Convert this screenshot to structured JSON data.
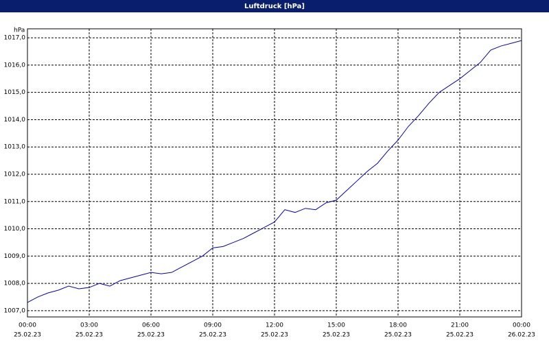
{
  "chart_data": {
    "type": "line",
    "title": "Luftdruck [hPa]",
    "y_unit": "hPa",
    "x": [
      0,
      0.5,
      1,
      1.5,
      2,
      2.5,
      3,
      3.5,
      4,
      4.5,
      5,
      5.5,
      6,
      6.5,
      7,
      7.5,
      8,
      8.5,
      9,
      9.5,
      10,
      10.5,
      11,
      11.5,
      12,
      12.5,
      13,
      13.5,
      14,
      14.5,
      15,
      15.5,
      16,
      16.5,
      17,
      17.5,
      18,
      18.5,
      19,
      19.5,
      20,
      20.5,
      21,
      21.5,
      22,
      22.5,
      23,
      23.5,
      24
    ],
    "series": [
      {
        "color": "#0000cc",
        "values": [
          1007.3,
          1007.5,
          1007.65,
          1007.75,
          1007.9,
          1007.8,
          1007.85,
          1008.0,
          1007.9,
          1008.1,
          1008.2,
          1008.3,
          1008.4,
          1008.35,
          1008.4,
          1008.6,
          1008.8,
          1009.0,
          1009.3,
          1009.35,
          1009.5,
          1009.65,
          1009.85,
          1010.05,
          1010.25,
          1010.7,
          1010.6,
          1010.75,
          1010.7,
          1010.95,
          1011.05,
          1011.4,
          1011.75,
          1012.1,
          1012.4,
          1012.85,
          1013.25,
          1013.75,
          1014.15,
          1014.6,
          1015.0,
          1015.25,
          1015.5,
          1015.8,
          1016.1,
          1016.55,
          1016.7,
          1016.8,
          1016.9
        ]
      }
    ],
    "xlim": [
      0,
      24
    ],
    "xticks": [
      {
        "value": 0,
        "label": "00:00",
        "date": "25.02.23"
      },
      {
        "value": 3,
        "label": "03:00",
        "date": "25.02.23"
      },
      {
        "value": 6,
        "label": "06:00",
        "date": "25.02.23"
      },
      {
        "value": 9,
        "label": "09:00",
        "date": "25.02.23"
      },
      {
        "value": 12,
        "label": "12:00",
        "date": "25.02.23"
      },
      {
        "value": 15,
        "label": "15:00",
        "date": "25.02.23"
      },
      {
        "value": 18,
        "label": "18:00",
        "date": "25.02.23"
      },
      {
        "value": 21,
        "label": "21:00",
        "date": "25.02.23"
      },
      {
        "value": 24,
        "label": "00:00",
        "date": "26.02.23"
      }
    ],
    "ylim": [
      1006.77,
      1017.33
    ],
    "yticks": [
      {
        "value": 1007,
        "label": "1007,0"
      },
      {
        "value": 1008,
        "label": "1008,0"
      },
      {
        "value": 1009,
        "label": "1009,0"
      },
      {
        "value": 1010,
        "label": "1010,0"
      },
      {
        "value": 1011,
        "label": "1011,0"
      },
      {
        "value": 1012,
        "label": "1012,0"
      },
      {
        "value": 1013,
        "label": "1013,0"
      },
      {
        "value": 1014,
        "label": "1014,0"
      },
      {
        "value": 1015,
        "label": "1015,0"
      },
      {
        "value": 1016,
        "label": "1016,0"
      },
      {
        "value": 1017,
        "label": "1017,0"
      }
    ],
    "grid": true
  }
}
